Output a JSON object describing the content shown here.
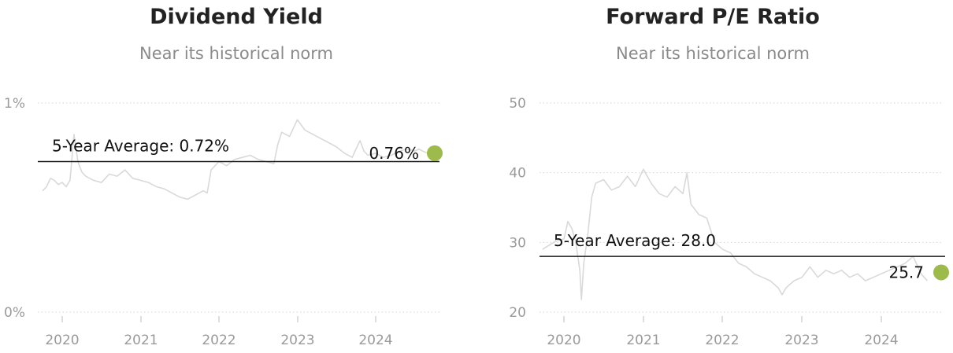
{
  "colors": {
    "series_line": "#d9d9d9",
    "average_line": "#1a1a1a",
    "current_dot": "#9dbb4a",
    "gridline": "#d6d6d6",
    "tick_text": "#9a9a9a"
  },
  "chart_data": [
    {
      "type": "line",
      "title": "Dividend Yield",
      "subtitle": "Near its historical norm",
      "xlabel": "",
      "ylabel": "",
      "x_tick_labels": [
        "2020",
        "2021",
        "2022",
        "2023",
        "2024"
      ],
      "y_ticks": [
        0,
        1
      ],
      "y_tick_labels": [
        "0%",
        "1%"
      ],
      "ylim": [
        0,
        1
      ],
      "xlim": [
        2019.72,
        2024.87
      ],
      "grid": "horizontal dotted",
      "average": {
        "value": 0.72,
        "label": "5-Year Average: 0.72%"
      },
      "current": {
        "x": 2024.76,
        "value": 0.76,
        "label": "0.76%"
      },
      "series": [
        {
          "x": [
            2019.75,
            2019.8,
            2019.85,
            2019.9,
            2019.95,
            2020.0,
            2020.05,
            2020.1,
            2020.15,
            2020.2,
            2020.25,
            2020.3,
            2020.4,
            2020.5,
            2020.6,
            2020.7,
            2020.8,
            2020.9,
            2021.0,
            2021.1,
            2021.2,
            2021.3,
            2021.4,
            2021.5,
            2021.6,
            2021.7,
            2021.8,
            2021.85,
            2021.9,
            2022.0,
            2022.1,
            2022.2,
            2022.3,
            2022.4,
            2022.5,
            2022.6,
            2022.7,
            2022.75,
            2022.8,
            2022.9,
            2023.0,
            2023.1,
            2023.2,
            2023.3,
            2023.4,
            2023.5,
            2023.6,
            2023.7,
            2023.75,
            2023.8,
            2023.85,
            2023.9,
            2024.0,
            2024.1,
            2024.2,
            2024.3,
            2024.4,
            2024.5,
            2024.55,
            2024.6,
            2024.66
          ],
          "values": [
            0.58,
            0.6,
            0.64,
            0.63,
            0.61,
            0.62,
            0.6,
            0.63,
            0.85,
            0.72,
            0.67,
            0.65,
            0.63,
            0.62,
            0.66,
            0.65,
            0.68,
            0.64,
            0.63,
            0.62,
            0.6,
            0.59,
            0.57,
            0.55,
            0.54,
            0.56,
            0.58,
            0.57,
            0.68,
            0.72,
            0.7,
            0.73,
            0.74,
            0.75,
            0.73,
            0.72,
            0.71,
            0.8,
            0.86,
            0.84,
            0.92,
            0.87,
            0.85,
            0.83,
            0.81,
            0.79,
            0.76,
            0.74,
            0.78,
            0.82,
            0.77,
            0.75,
            0.76,
            0.74,
            0.75,
            0.77,
            0.78,
            0.77,
            0.78,
            0.77,
            0.76
          ]
        }
      ]
    },
    {
      "type": "line",
      "title": "Forward P/E Ratio",
      "subtitle": "Near its historical norm",
      "xlabel": "",
      "ylabel": "",
      "x_tick_labels": [
        "2020",
        "2021",
        "2022",
        "2023",
        "2024"
      ],
      "y_ticks": [
        20,
        30,
        40,
        50
      ],
      "y_tick_labels": [
        "20",
        "30",
        "40",
        "50"
      ],
      "ylim": [
        20,
        50
      ],
      "xlim": [
        2019.7,
        2024.81
      ],
      "grid": "horizontal dotted",
      "average": {
        "value": 28.0,
        "label": "5-Year Average: 28.0"
      },
      "current": {
        "x": 2024.76,
        "value": 25.7,
        "label": "25.7"
      },
      "series": [
        {
          "x": [
            2019.73,
            2019.8,
            2019.9,
            2020.0,
            2020.05,
            2020.1,
            2020.15,
            2020.2,
            2020.22,
            2020.25,
            2020.3,
            2020.35,
            2020.4,
            2020.5,
            2020.6,
            2020.7,
            2020.8,
            2020.9,
            2021.0,
            2021.1,
            2021.2,
            2021.3,
            2021.4,
            2021.5,
            2021.55,
            2021.6,
            2021.7,
            2021.8,
            2021.9,
            2022.0,
            2022.1,
            2022.2,
            2022.3,
            2022.4,
            2022.5,
            2022.6,
            2022.7,
            2022.75,
            2022.8,
            2022.9,
            2023.0,
            2023.1,
            2023.2,
            2023.3,
            2023.4,
            2023.5,
            2023.6,
            2023.7,
            2023.8,
            2023.9,
            2024.0,
            2024.1,
            2024.2,
            2024.3,
            2024.4,
            2024.5,
            2024.58
          ],
          "values": [
            29.0,
            29.5,
            30.2,
            30.5,
            33.0,
            32.0,
            30.0,
            26.0,
            21.8,
            27.0,
            31.0,
            36.5,
            38.5,
            39.0,
            37.5,
            38.0,
            39.5,
            38.0,
            40.5,
            38.5,
            37.0,
            36.5,
            38.0,
            37.0,
            40.0,
            35.5,
            34.0,
            33.5,
            30.0,
            29.0,
            28.5,
            27.0,
            26.5,
            25.5,
            25.0,
            24.5,
            23.5,
            22.5,
            23.5,
            24.5,
            25.0,
            26.5,
            25.0,
            26.0,
            25.5,
            26.0,
            25.0,
            25.5,
            24.5,
            25.0,
            25.5,
            26.0,
            26.5,
            27.0,
            28.0,
            25.5,
            24.5
          ]
        }
      ]
    }
  ]
}
